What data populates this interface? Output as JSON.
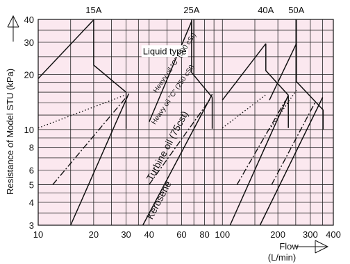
{
  "chart_data": {
    "type": "line",
    "title": "",
    "xlabel": "Flow",
    "xunit": "(L/min)",
    "ylabel": "Resistance of Model STU (kPa)",
    "x_scale": "log",
    "y_scale": "log",
    "xlim": [
      10,
      400
    ],
    "ylim": [
      3,
      40
    ],
    "grid": true,
    "plot_background": "#fbe8ef",
    "x_tick_labels": [
      {
        "value": 10,
        "label": "10"
      },
      {
        "value": 20,
        "label": "20"
      },
      {
        "value": 30,
        "label": "30"
      },
      {
        "value": 40,
        "label": "40"
      },
      {
        "value": 60,
        "label": "60"
      },
      {
        "value": 80,
        "label": "80"
      },
      {
        "value": 100,
        "label": "100"
      },
      {
        "value": 200,
        "label": "200"
      },
      {
        "value": 300,
        "label": "300"
      },
      {
        "value": 400,
        "label": "400"
      }
    ],
    "y_tick_labels": [
      {
        "value": 3,
        "label": "3"
      },
      {
        "value": 4,
        "label": "4"
      },
      {
        "value": 5,
        "label": "5"
      },
      {
        "value": 6,
        "label": "6"
      },
      {
        "value": 8,
        "label": "8"
      },
      {
        "value": 10,
        "label": "10"
      },
      {
        "value": 20,
        "label": "20"
      },
      {
        "value": 30,
        "label": "30"
      },
      {
        "value": 40,
        "label": "40"
      }
    ],
    "x_grid": [
      10,
      15,
      20,
      25,
      30,
      35,
      40,
      50,
      60,
      70,
      80,
      90,
      100,
      150,
      200,
      250,
      300,
      350,
      400
    ],
    "y_grid": [
      3,
      3.5,
      4,
      4.5,
      5,
      6,
      7,
      8,
      9,
      10,
      12,
      14,
      16,
      18,
      20,
      25,
      30,
      35,
      40
    ],
    "sizes": [
      {
        "label": "15A",
        "x": 20
      },
      {
        "label": "25A",
        "x": 68
      },
      {
        "label": "40A",
        "x": 172
      },
      {
        "label": "50A",
        "x": 252
      }
    ],
    "series": [
      {
        "name": "Liquid type",
        "style": "solid",
        "points": [
          [
            10,
            19
          ],
          [
            20,
            39.8
          ]
        ]
      },
      {
        "name": "Liquid type",
        "style": "solid",
        "points": [
          [
            20,
            39.8
          ],
          [
            20,
            22.5
          ],
          [
            30,
            16
          ]
        ]
      },
      {
        "name": "Liquid type",
        "style": "solid",
        "points": [
          [
            30,
            16
          ],
          [
            30,
            10.1
          ]
        ]
      },
      {
        "name": "Liquid type",
        "style": "solid",
        "points": [
          [
            40,
            11
          ],
          [
            68,
            39
          ]
        ]
      },
      {
        "name": "Liquid type",
        "style": "solid",
        "points": [
          [
            68,
            39
          ],
          [
            68,
            20.5
          ],
          [
            88,
            15
          ]
        ]
      },
      {
        "name": "Liquid type",
        "style": "solid",
        "points": [
          [
            88,
            15
          ],
          [
            88,
            10.1
          ]
        ]
      },
      {
        "name": "Liquid type",
        "style": "solid",
        "points": [
          [
            100,
            14.5
          ],
          [
            172,
            29.5
          ]
        ]
      },
      {
        "name": "Liquid type",
        "style": "solid",
        "points": [
          [
            172,
            29.5
          ],
          [
            172,
            21
          ],
          [
            228,
            15.4
          ]
        ]
      },
      {
        "name": "Liquid type",
        "style": "solid",
        "points": [
          [
            228,
            15.4
          ],
          [
            228,
            10.2
          ]
        ]
      },
      {
        "name": "Liquid type",
        "style": "solid",
        "points": [
          [
            180,
            14.5
          ],
          [
            252,
            29.5
          ]
        ]
      },
      {
        "name": "Liquid type",
        "style": "solid",
        "points": [
          [
            252,
            29.5
          ],
          [
            252,
            18.3
          ],
          [
            352,
            12.8
          ]
        ]
      },
      {
        "name": "Liquid type",
        "style": "solid",
        "points": [
          [
            352,
            12.8
          ],
          [
            352,
            10
          ]
        ]
      },
      {
        "name": "Heavy oil \"C\" (500 cSt)",
        "style": "solid",
        "points": [
          [
            68,
            39.8
          ],
          [
            68,
            33
          ]
        ]
      },
      {
        "name": "Heavy oil \"C\" (500 cSt)",
        "style": "solid",
        "points": [
          [
            70,
            39.8
          ],
          [
            70,
            20
          ]
        ]
      },
      {
        "name": "Heavy oil \"C\" (500 cSt)",
        "style": "solid",
        "points": [
          [
            252,
            39.8
          ],
          [
            252,
            19
          ]
        ]
      },
      {
        "name": "Heavy oil \"C\" (250 cSt)",
        "style": "dotted",
        "points": [
          [
            10,
            10.2
          ],
          [
            30,
            15.5
          ]
        ]
      },
      {
        "name": "Heavy oil \"C\" (250 cSt)",
        "style": "dotted",
        "points": [
          [
            100,
            10.2
          ],
          [
            172,
            15.5
          ]
        ]
      },
      {
        "name": "Heavy oil \"C\" (250 cSt)",
        "style": "dotted",
        "points": [
          [
            180,
            10
          ],
          [
            252,
            16.4
          ]
        ]
      },
      {
        "name": "Turbine oil (75 cSt)",
        "style": "dashdot",
        "points": [
          [
            12,
            5
          ],
          [
            30,
            15
          ]
        ]
      },
      {
        "name": "Turbine oil (75 cSt)",
        "style": "dashdot",
        "points": [
          [
            40,
            5
          ],
          [
            86,
            14.7
          ]
        ]
      },
      {
        "name": "Turbine oil (75 cSt)",
        "style": "dashdot",
        "points": [
          [
            120,
            5
          ],
          [
            220,
            14.4
          ]
        ]
      },
      {
        "name": "Turbine oil (75 cSt)",
        "style": "dashdot",
        "points": [
          [
            185,
            5
          ],
          [
            320,
            14.2
          ]
        ]
      },
      {
        "name": "Kerosene",
        "style": "solid",
        "points": [
          [
            15,
            3
          ],
          [
            31,
            15.7
          ]
        ]
      },
      {
        "name": "Kerosene",
        "style": "solid",
        "points": [
          [
            37,
            3
          ],
          [
            88,
            15.6
          ]
        ]
      },
      {
        "name": "Kerosene",
        "style": "solid",
        "points": [
          [
            110,
            3
          ],
          [
            228,
            15.4
          ]
        ]
      },
      {
        "name": "Kerosene",
        "style": "solid",
        "points": [
          [
            160,
            3
          ],
          [
            350,
            15
          ]
        ]
      }
    ],
    "annotations": [
      {
        "text": "Liquid type",
        "x": 37,
        "y": 25.8,
        "rotate": 0,
        "size": 13
      },
      {
        "text": "Heavy oil \"C\" (500 cSt)",
        "x": 44,
        "y": 15.8,
        "rotate": -56,
        "size": 10
      },
      {
        "text": "Heavy oil \"C\" (250 cSt)",
        "x": 43,
        "y": 10.6,
        "rotate": -56,
        "size": 10
      },
      {
        "text": "Turbine oil (75cst)",
        "x": 41.5,
        "y": 5.2,
        "rotate": -62,
        "size": 14
      },
      {
        "text": "Kerosene",
        "x": 41.5,
        "y": 3.2,
        "rotate": -62,
        "size": 14
      }
    ]
  }
}
